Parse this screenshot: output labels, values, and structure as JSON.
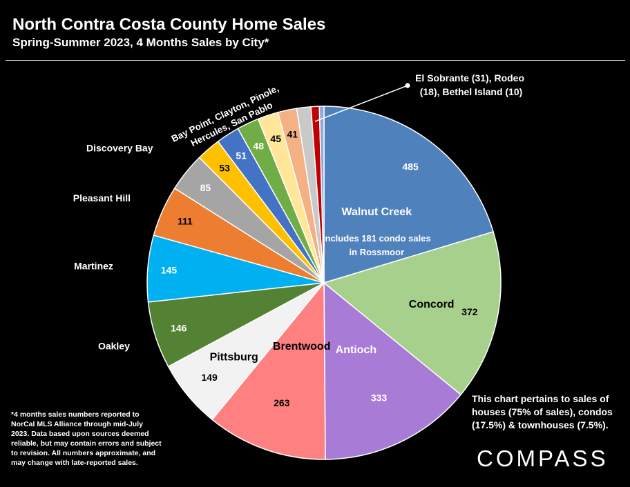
{
  "header": {
    "title": "North Contra Costa County Home Sales",
    "subtitle": "Spring-Summer 2023, 4 Months Sales by City*"
  },
  "chart_data": {
    "type": "pie",
    "slices": [
      {
        "name": "Walnut Creek",
        "value": 485,
        "color": "#4f81bd",
        "label_color": "#ffffff",
        "note": "Includes 181 condo sales in Rossmoor"
      },
      {
        "name": "Concord",
        "value": 372,
        "color": "#a8d08d",
        "label_color": "#000000"
      },
      {
        "name": "Antioch",
        "value": 333,
        "color": "#a87cd6",
        "label_color": "#ffffff"
      },
      {
        "name": "Brentwood",
        "value": 263,
        "color": "#ff8080",
        "label_color": "#000000"
      },
      {
        "name": "Pittsburg",
        "value": 149,
        "color": "#f2f2f2",
        "label_color": "#000000"
      },
      {
        "name": "Oakley",
        "value": 146,
        "color": "#548235",
        "label_color": "#ffffff"
      },
      {
        "name": "Martinez",
        "value": 145,
        "color": "#00b0f0",
        "label_color": "#ffffff"
      },
      {
        "name": "Pleasant Hill",
        "value": 111,
        "color": "#ed7d31",
        "label_color": "#000000"
      },
      {
        "name": "Discovery Bay",
        "value": 85,
        "color": "#a5a5a5",
        "label_color": "#ffffff"
      },
      {
        "name": "",
        "value": 53,
        "color": "#ffc000",
        "label_color": "#000000"
      },
      {
        "name": "",
        "value": 51,
        "color": "#4472c4",
        "label_color": "#ffffff"
      },
      {
        "name": "",
        "value": 48,
        "color": "#70ad47",
        "label_color": "#ffffff"
      },
      {
        "name": "",
        "value": 45,
        "color": "#ffe699",
        "label_color": "#000000"
      },
      {
        "name": "",
        "value": 41,
        "color": "#f4b183",
        "label_color": "#000000"
      },
      {
        "name": "",
        "value": 31,
        "color": "#c9c9c9",
        "label_color": "#000000"
      },
      {
        "name": "",
        "value": 18,
        "color": "#c00000",
        "label_color": "#000000"
      },
      {
        "name": "",
        "value": 10,
        "color": "#8ea9db",
        "label_color": "#000000"
      }
    ],
    "group_label_lines": [
      "Bay Point, Clayton, Pinole,",
      "Hercules, San Pablo"
    ],
    "callout_lines": [
      "El Sobrante (31), Rodeo",
      "(18), Bethel Island (10)"
    ]
  },
  "notes": {
    "chart_scope": [
      "This chart pertains to sales of",
      "houses (75% of sales), condos",
      "(17.5%) & townhouses (7.5%)."
    ],
    "footnote": [
      "*4 months sales numbers reported to",
      "NorCal MLS Alliance through mid-July",
      "2023. Data based upon sources deemed",
      "reliable, but may contain errors and subject",
      "to revision. All numbers approximate, and",
      "may change with late-reported sales."
    ]
  },
  "brand": {
    "logo": "COMPASS"
  }
}
